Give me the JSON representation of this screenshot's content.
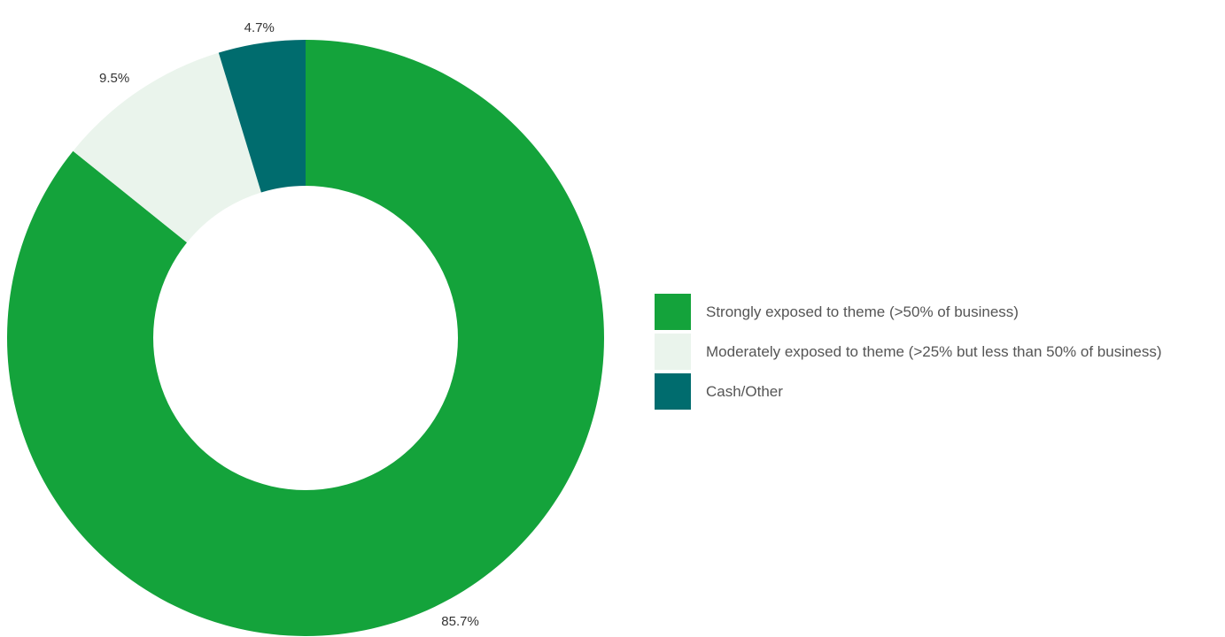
{
  "chart_data": {
    "type": "pie",
    "donut": true,
    "title": "",
    "legend_position": "right",
    "slices": [
      {
        "label": "Strongly exposed to theme (>50% of business)",
        "value": 85.7,
        "display": "85.7%",
        "color": "#14a33b"
      },
      {
        "label": "Moderately exposed to theme (>25% but less than 50% of business)",
        "value": 9.5,
        "display": "9.5%",
        "color": "#eaf4ec"
      },
      {
        "label": "Cash/Other",
        "value": 4.7,
        "display": "4.7%",
        "color": "#006c6e"
      }
    ]
  }
}
